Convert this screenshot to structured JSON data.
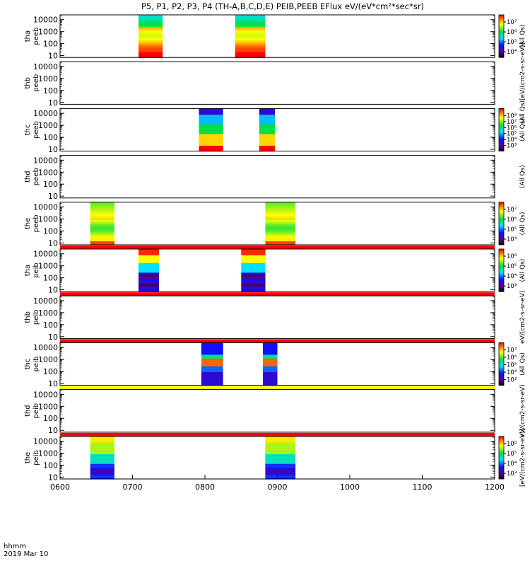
{
  "chart_data": {
    "type": "heatmap",
    "title": "P5, P1, P2, P3, P4 (TH-A,B,C,D,E) PEIB,PEEB EFlux eV/(eV*cm²*sec*sr)",
    "x_axis": {
      "label_line1": "hhmm",
      "label_line2": "2019 Mar 10",
      "range": [
        "0600",
        "1200"
      ],
      "ticks": [
        "0600",
        "0700",
        "0800",
        "0900",
        "1000",
        "1100",
        "1200"
      ]
    },
    "y_scale": "log",
    "y_ticks": [
      "10",
      "100",
      "1000",
      "10000"
    ],
    "colorscale": "rainbow (black-purple-blue-cyan-green-yellow-red)",
    "panels": [
      {
        "ylabel": [
          "tha",
          "peeb"
        ],
        "colorbar_ticks": [
          "10⁷",
          "10⁶",
          "10⁵",
          "10⁴"
        ],
        "colorbar_label": "(All Qs)",
        "status_bar": null,
        "intervals": [
          {
            "start": "07:05",
            "end": "07:25",
            "profile": "electron_high"
          },
          {
            "start": "08:25",
            "end": "08:50",
            "profile": "electron_high"
          }
        ]
      },
      {
        "ylabel": [
          "thb",
          "peeb"
        ],
        "colorbar_ticks": [],
        "colorbar_label": "(All Qs)[eV/(cm2-s-sr-eV)]",
        "status_bar": null,
        "intervals": []
      },
      {
        "ylabel": [
          "thc",
          "peeb"
        ],
        "colorbar_ticks": [
          "10⁸",
          "10⁷",
          "10⁶",
          "10⁵",
          "10⁴",
          "10³"
        ],
        "colorbar_label": "(All Qs)",
        "status_bar": null,
        "intervals": [
          {
            "start": "07:55",
            "end": "08:15",
            "profile": "electron_low"
          },
          {
            "start": "08:45",
            "end": "08:58",
            "profile": "electron_low"
          }
        ]
      },
      {
        "ylabel": [
          "thd",
          "peeb"
        ],
        "colorbar_ticks": [],
        "colorbar_label": "(All Qs)",
        "status_bar": null,
        "intervals": []
      },
      {
        "ylabel": [
          "the",
          "peeb"
        ],
        "colorbar_ticks": [
          "10⁷",
          "10⁶",
          "10⁵",
          "10⁴"
        ],
        "colorbar_label": "(All Qs)",
        "status_bar": "red",
        "intervals": [
          {
            "start": "06:25",
            "end": "06:45",
            "profile": "electron_mid"
          },
          {
            "start": "08:50",
            "end": "09:15",
            "profile": "electron_mid"
          }
        ]
      },
      {
        "ylabel": [
          "tha",
          "peib"
        ],
        "colorbar_ticks": [
          "10⁶",
          "10⁵",
          "10⁴",
          "10³"
        ],
        "colorbar_label": "(All Qs)",
        "status_bar": "red",
        "intervals": [
          {
            "start": "07:05",
            "end": "07:22",
            "profile": "ion"
          },
          {
            "start": "08:30",
            "end": "08:50",
            "profile": "ion"
          }
        ]
      },
      {
        "ylabel": [
          "thb",
          "peib"
        ],
        "colorbar_ticks": [],
        "colorbar_label": "eV/(cm2-s-sr-eV)",
        "status_bar": "red",
        "intervals": []
      },
      {
        "ylabel": [
          "thc",
          "peib"
        ],
        "colorbar_ticks": [
          "10⁷",
          "10⁶",
          "10⁵",
          "10⁴",
          "10³"
        ],
        "colorbar_label": "(All Qs)",
        "status_bar": "yellow",
        "intervals": [
          {
            "start": "07:57",
            "end": "08:15",
            "profile": "ion_band"
          },
          {
            "start": "08:48",
            "end": "09:00",
            "profile": "ion_band"
          }
        ]
      },
      {
        "ylabel": [
          "thd",
          "peib"
        ],
        "colorbar_ticks": [],
        "colorbar_label": "eV/(cm2-s-sr-eV)",
        "status_bar": "red",
        "intervals": []
      },
      {
        "ylabel": [
          "the",
          "peib"
        ],
        "colorbar_ticks": [
          "10⁶",
          "10⁵",
          "10⁴",
          "10³"
        ],
        "colorbar_label": "[eV/(cm2-s-sr-eV)]",
        "status_bar": null,
        "intervals": [
          {
            "start": "06:25",
            "end": "06:45",
            "profile": "ion_warm"
          },
          {
            "start": "08:50",
            "end": "09:15",
            "profile": "ion_warm"
          }
        ]
      }
    ]
  }
}
